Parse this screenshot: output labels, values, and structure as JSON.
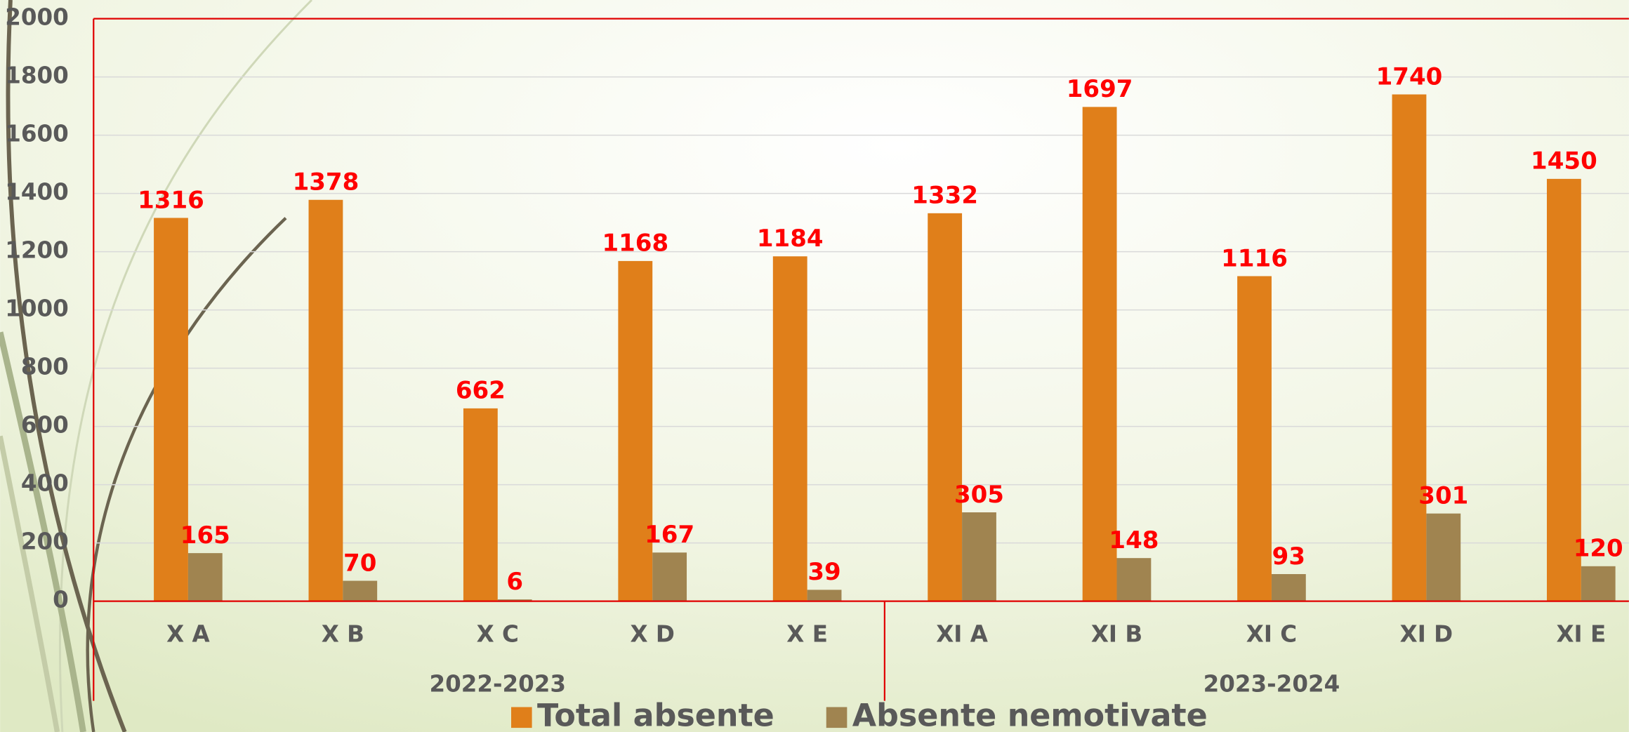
{
  "chart_data": {
    "type": "bar",
    "categories": [
      "X A",
      "X B",
      "X C",
      "X D",
      "X E",
      "XI A",
      "XI B",
      "XI C",
      "XI D",
      "XI E"
    ],
    "groups": [
      "2022-2023",
      "2023-2024"
    ],
    "series": [
      {
        "name": "Total absente",
        "color": "#e07f1a",
        "values": [
          1316,
          1378,
          662,
          1168,
          1184,
          1332,
          1697,
          1116,
          1740,
          1450
        ]
      },
      {
        "name": "Absente nemotivate",
        "color": "#a08450",
        "values": [
          165,
          70,
          6,
          167,
          39,
          305,
          148,
          93,
          301,
          120
        ]
      }
    ],
    "ylim": [
      0,
      2000
    ],
    "yticks": [
      0,
      200,
      400,
      600,
      800,
      1000,
      1200,
      1400,
      1600,
      1800,
      2000
    ],
    "grid": true,
    "legend": "bottom"
  }
}
